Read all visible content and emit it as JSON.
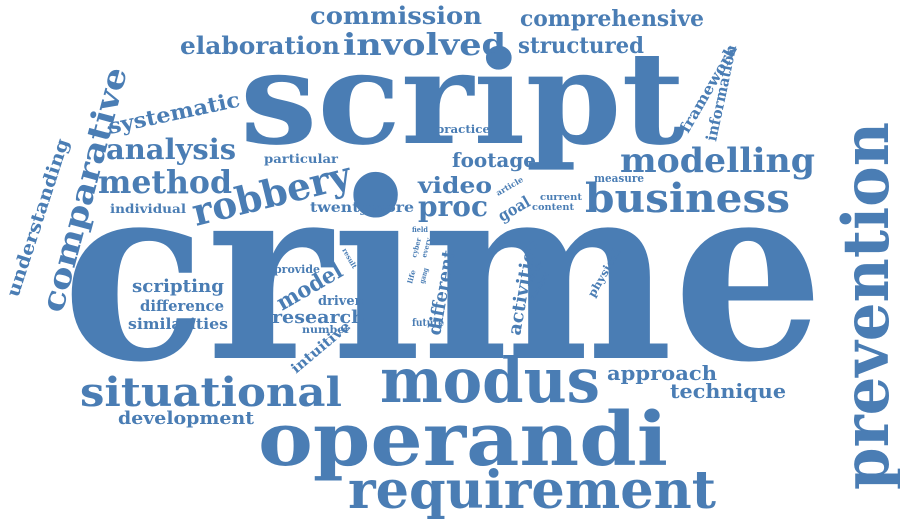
{
  "theme": {
    "word_color": "#4a7db4",
    "background": "#ffffff"
  },
  "words": {
    "crime": "crime",
    "script": "script",
    "modus": "modus",
    "operandi": "operandi",
    "prevention": "prevention",
    "requirement": "requirement",
    "situational": "situational",
    "business": "business",
    "modelling": "modelling",
    "robbery": "robbery",
    "method": "method",
    "comparative": "comparative",
    "analysis": "analysis",
    "involved": "involved",
    "elaboration": "elaboration",
    "commission": "commission",
    "comprehensive": "comprehensive",
    "structured": "structured",
    "systematic": "systematic",
    "understanding": "understanding",
    "framework": "framework",
    "information": "information",
    "footage": "footage",
    "video": "video",
    "proc": "proc",
    "goal": "goal",
    "practice": "practice",
    "particular": "particular",
    "twentymore": "twentymore",
    "individual": "individual",
    "measure": "measure",
    "article": "article",
    "current": "current",
    "content": "content",
    "scripting": "scripting",
    "difference": "difference",
    "similarities": "similarities",
    "provide": "provide",
    "model": "model",
    "driven": "driven",
    "research": "research",
    "number": "number",
    "intuitive": "intuitive",
    "different": "different",
    "activities": "activities",
    "physical": "physical",
    "approach": "approach",
    "technique": "technique",
    "development": "development",
    "result": "result",
    "field": "field",
    "cyber": "cyber",
    "every": "every",
    "life": "life",
    "gang": "gang",
    "study": "study",
    "analyst": "analyst",
    "future": "future"
  }
}
